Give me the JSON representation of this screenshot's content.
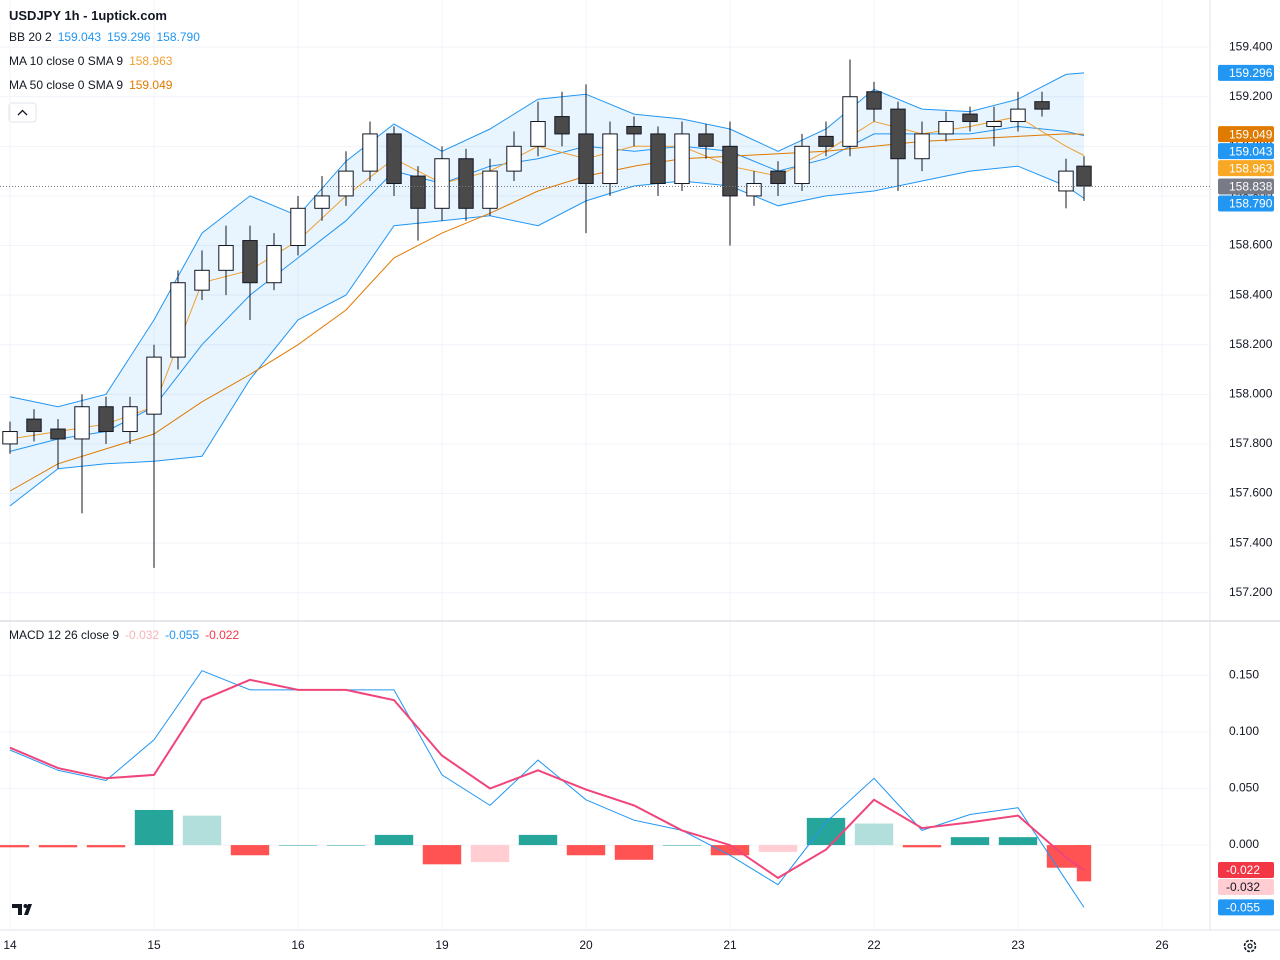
{
  "header": {
    "title": "USDJPY 1h - 1uptick.com"
  },
  "chart_data": [
    {
      "type": "candlestick",
      "legend": [
        {
          "name": "BB 20 2",
          "values": [
            "159.043",
            "159.296",
            "158.790"
          ],
          "colors": [
            "#2196f3",
            "#2196f3",
            "#2196f3"
          ]
        },
        {
          "name": "MA 10 close 0 SMA 9",
          "values": [
            "158.963"
          ],
          "colors": [
            "#f0a030"
          ]
        },
        {
          "name": "MA 50 close 0 SMA 9",
          "values": [
            "159.049"
          ],
          "colors": [
            "#e07a00"
          ]
        }
      ],
      "xlim": [
        -1.667,
        200
      ],
      "xticks": [
        {
          "value": 0,
          "label": "14"
        },
        {
          "value": 24,
          "label": "15"
        },
        {
          "value": 48,
          "label": "16"
        },
        {
          "value": 72,
          "label": "19"
        },
        {
          "value": 96,
          "label": "20"
        },
        {
          "value": 120,
          "label": "21"
        },
        {
          "value": 144,
          "label": "22"
        },
        {
          "value": 168,
          "label": "23"
        },
        {
          "value": 192,
          "label": "26"
        }
      ],
      "ylim": [
        157.09,
        159.59
      ],
      "yticks": [
        {
          "value": 157.2,
          "label": "157.200"
        },
        {
          "value": 157.4,
          "label": "157.400"
        },
        {
          "value": 157.6,
          "label": "157.600"
        },
        {
          "value": 157.8,
          "label": "157.800"
        },
        {
          "value": 158.0,
          "label": "158.000"
        },
        {
          "value": 158.2,
          "label": "158.200"
        },
        {
          "value": 158.4,
          "label": "158.400"
        },
        {
          "value": 158.6,
          "label": "158.600"
        },
        {
          "value": 158.8,
          "label": "158.800"
        },
        {
          "value": 159.0,
          "label": "159.000"
        },
        {
          "value": 159.2,
          "label": "159.200"
        },
        {
          "value": 159.4,
          "label": "159.400"
        }
      ],
      "grid": true,
      "up_color": "#ffffff",
      "down_color": "#4a4a4a",
      "wick_color": "#131722",
      "x": [
        0,
        4,
        8,
        12,
        16,
        20,
        24,
        28,
        32,
        36,
        40,
        44,
        48,
        52,
        56,
        60,
        64,
        68,
        72,
        76,
        80,
        84,
        88,
        92,
        96,
        100,
        104,
        108,
        112,
        116,
        120,
        124,
        128,
        132,
        136,
        140,
        144,
        148,
        152,
        156,
        160,
        164,
        168,
        172,
        176,
        179
      ],
      "open": [
        157.8,
        157.9,
        157.86,
        157.82,
        157.95,
        157.85,
        157.92,
        158.15,
        158.42,
        158.5,
        158.62,
        158.45,
        158.6,
        158.75,
        158.8,
        158.9,
        159.05,
        158.88,
        158.75,
        158.95,
        158.75,
        158.9,
        159.0,
        159.12,
        159.05,
        158.85,
        159.08,
        159.05,
        158.85,
        159.05,
        159.0,
        158.8,
        158.9,
        158.85,
        159.04,
        159.0,
        159.22,
        159.15,
        158.95,
        159.05,
        159.13,
        159.08,
        159.1,
        159.18,
        158.82,
        158.92
      ],
      "high": [
        157.89,
        157.94,
        157.9,
        158.0,
        157.99,
        157.99,
        158.2,
        158.5,
        158.58,
        158.68,
        158.68,
        158.65,
        158.8,
        158.88,
        158.98,
        159.1,
        159.08,
        158.92,
        159.0,
        158.99,
        158.95,
        159.06,
        159.18,
        159.22,
        159.25,
        159.1,
        159.12,
        159.08,
        159.1,
        159.09,
        159.1,
        158.9,
        158.94,
        159.05,
        159.1,
        159.35,
        159.26,
        159.18,
        159.1,
        159.14,
        159.16,
        159.16,
        159.22,
        159.22,
        158.95,
        158.96
      ],
      "low": [
        157.76,
        157.81,
        157.7,
        157.52,
        157.8,
        157.8,
        157.3,
        158.1,
        158.38,
        158.4,
        158.3,
        158.42,
        158.56,
        158.7,
        158.76,
        158.86,
        158.8,
        158.62,
        158.7,
        158.7,
        158.72,
        158.86,
        158.96,
        159.0,
        158.65,
        158.8,
        159.0,
        158.8,
        158.82,
        158.95,
        158.6,
        158.76,
        158.8,
        158.82,
        158.96,
        158.96,
        159.1,
        158.82,
        158.9,
        159.02,
        159.06,
        159.0,
        159.06,
        159.12,
        158.75,
        158.78
      ],
      "close": [
        157.85,
        157.85,
        157.82,
        157.95,
        157.85,
        157.95,
        158.15,
        158.45,
        158.5,
        158.6,
        158.45,
        158.6,
        158.75,
        158.8,
        158.9,
        159.05,
        158.85,
        158.75,
        158.95,
        158.75,
        158.9,
        159.0,
        159.1,
        159.05,
        158.85,
        159.05,
        159.05,
        158.85,
        159.05,
        159.0,
        158.8,
        158.85,
        158.85,
        159.0,
        159.0,
        159.2,
        159.15,
        158.95,
        159.05,
        159.1,
        159.1,
        159.1,
        159.15,
        159.15,
        158.9,
        158.84
      ],
      "line_x": [
        0,
        8,
        16,
        24,
        32,
        40,
        48,
        56,
        64,
        72,
        80,
        88,
        96,
        104,
        112,
        120,
        128,
        136,
        144,
        152,
        160,
        168,
        176,
        179
      ],
      "band_fill": "rgba(33,150,243,0.1)",
      "lines": [
        {
          "color": "#2196f3",
          "values": [
            157.99,
            157.95,
            158.0,
            158.3,
            158.65,
            158.8,
            158.72,
            158.94,
            159.09,
            158.98,
            159.07,
            159.19,
            159.21,
            159.13,
            159.11,
            159.07,
            158.98,
            159.07,
            159.23,
            159.15,
            159.14,
            159.19,
            159.29,
            159.296
          ]
        },
        {
          "color": "#2196f3",
          "values": [
            157.55,
            157.7,
            157.72,
            157.73,
            157.75,
            158.06,
            158.3,
            158.4,
            158.68,
            158.7,
            158.72,
            158.68,
            158.78,
            158.84,
            158.86,
            158.84,
            158.76,
            158.8,
            158.82,
            158.86,
            158.9,
            158.92,
            158.84,
            158.79
          ]
        },
        {
          "color": "#2196f3",
          "values": [
            157.77,
            157.82,
            157.85,
            157.95,
            158.2,
            158.4,
            158.55,
            158.7,
            158.9,
            158.85,
            158.92,
            158.95,
            159.0,
            158.98,
            159.0,
            158.98,
            158.9,
            158.95,
            159.05,
            159.05,
            159.05,
            159.08,
            159.06,
            159.043
          ]
        },
        {
          "color": "#f0a030",
          "values": [
            157.82,
            157.85,
            157.88,
            157.95,
            158.45,
            158.5,
            158.62,
            158.8,
            158.95,
            158.85,
            158.9,
            159.0,
            158.95,
            159.0,
            159.0,
            158.92,
            158.88,
            158.98,
            159.1,
            159.05,
            159.08,
            159.12,
            159.0,
            158.963
          ]
        },
        {
          "color": "#e07a00",
          "values": [
            157.61,
            157.72,
            157.78,
            157.84,
            157.97,
            158.08,
            158.2,
            158.34,
            158.55,
            158.65,
            158.73,
            158.82,
            158.88,
            158.92,
            158.95,
            158.96,
            158.97,
            158.98,
            159.0,
            159.02,
            159.03,
            159.04,
            159.05,
            159.049
          ]
        }
      ],
      "price_tags": [
        {
          "value": 159.296,
          "label": "159.296",
          "color": "#2196f3"
        },
        {
          "value": 159.049,
          "label": "159.049",
          "color": "#e07a00"
        },
        {
          "value": 159.043,
          "label": "159.043",
          "color": "#2196f3"
        },
        {
          "value": 158.963,
          "label": "158.963",
          "color": "#f9a825"
        },
        {
          "value": 158.838,
          "label": "158.838",
          "color": "#787b86",
          "line": true
        },
        {
          "value": 158.79,
          "label": "158.790",
          "color": "#2196f3"
        }
      ]
    },
    {
      "type": "macd",
      "legend": [
        {
          "name": "MACD 12 26 close 9",
          "values": [
            "-0.032",
            "-0.055",
            "-0.022"
          ],
          "colors": [
            "#f7b4bc",
            "#2196f3",
            "#f23645"
          ]
        }
      ],
      "ylim": [
        -0.075,
        0.197
      ],
      "yticks": [
        {
          "value": 0.15,
          "label": "0.150"
        },
        {
          "value": 0.1,
          "label": "0.100"
        },
        {
          "value": 0.05,
          "label": "0.050"
        },
        {
          "value": 0,
          "label": "0.000"
        }
      ],
      "x": [
        0,
        8,
        16,
        24,
        32,
        40,
        48,
        56,
        64,
        72,
        80,
        88,
        96,
        104,
        112,
        120,
        128,
        136,
        144,
        152,
        160,
        168,
        176,
        179
      ],
      "macd": {
        "color": "#2196f3",
        "values": [
          0.084,
          0.066,
          0.057,
          0.093,
          0.154,
          0.137,
          0.137,
          0.137,
          0.137,
          0.062,
          0.035,
          0.075,
          0.04,
          0.022,
          0.013,
          -0.009,
          -0.035,
          0.02,
          0.059,
          0.013,
          0.027,
          0.033,
          -0.031,
          -0.055
        ]
      },
      "signal": {
        "color": "#f0457a",
        "values": [
          0.086,
          0.068,
          0.059,
          0.062,
          0.128,
          0.146,
          0.137,
          0.137,
          0.128,
          0.079,
          0.05,
          0.066,
          0.049,
          0.035,
          0.013,
          0.0,
          -0.029,
          -0.004,
          0.04,
          0.015,
          0.02,
          0.026,
          -0.011,
          -0.022
        ]
      },
      "histogram": [
        -0.002,
        -0.002,
        -0.002,
        0.031,
        0.026,
        -0.009,
        0,
        0,
        0.009,
        -0.017,
        -0.015,
        0.009,
        -0.009,
        -0.013,
        0,
        -0.009,
        -0.006,
        0.024,
        0.019,
        -0.002,
        0.007,
        0.007,
        -0.02,
        -0.032
      ],
      "hist_colors": {
        "up_rising": "#26a69a",
        "up_falling": "#b2dfdb",
        "down_falling": "#ff5252",
        "down_rising": "#ffcdd2"
      },
      "tags": [
        {
          "value": -0.022,
          "label": "-0.022",
          "color": "#f23645",
          "text_color": "#ffffff"
        },
        {
          "value": -0.032,
          "label": "-0.032",
          "color": "#ffcdd2",
          "text_color": "#131722"
        },
        {
          "value": -0.055,
          "label": "-0.055",
          "color": "#2196f3",
          "text_color": "#ffffff"
        }
      ]
    }
  ]
}
